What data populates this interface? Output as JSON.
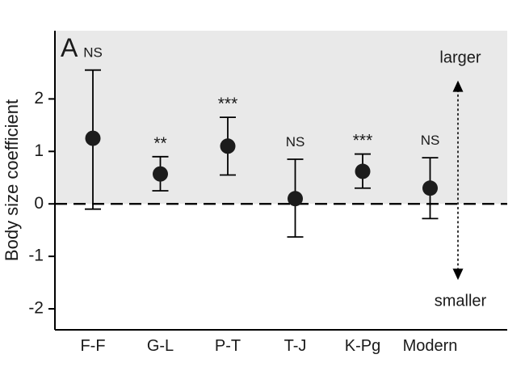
{
  "figure": {
    "panel_label": "A"
  },
  "chart_data": {
    "type": "scatter",
    "title": "",
    "xlabel": "",
    "ylabel": "Body size coefficient",
    "categories": [
      "F-F",
      "G-L",
      "P-T",
      "T-J",
      "K-Pg",
      "Modern"
    ],
    "series": [
      {
        "name": "body-size-coefficient",
        "values": [
          1.25,
          0.57,
          1.1,
          0.1,
          0.62,
          0.3
        ],
        "error_low": [
          -0.1,
          0.25,
          0.55,
          -0.63,
          0.3,
          -0.28
        ],
        "error_high": [
          2.55,
          0.9,
          1.65,
          0.85,
          0.95,
          0.88
        ]
      }
    ],
    "significance_labels": [
      "NS",
      "**",
      "***",
      "NS",
      "***",
      "NS"
    ],
    "yticks": [
      -2,
      -1,
      0,
      1,
      2
    ],
    "ylim": [
      -2.4,
      3.3
    ],
    "zero_line": 0,
    "shaded_region": {
      "from": 0,
      "to": 3.3
    },
    "grid": false,
    "legend": "none",
    "annotations": {
      "upper": "larger",
      "lower": "smaller",
      "arrow_top_value": 2.35,
      "arrow_bottom_value": -1.45
    },
    "colors": {
      "shade": "#e9e9e9",
      "point": "#1c1c1c",
      "axis": "#000000",
      "text": "#1a1a1a"
    }
  }
}
